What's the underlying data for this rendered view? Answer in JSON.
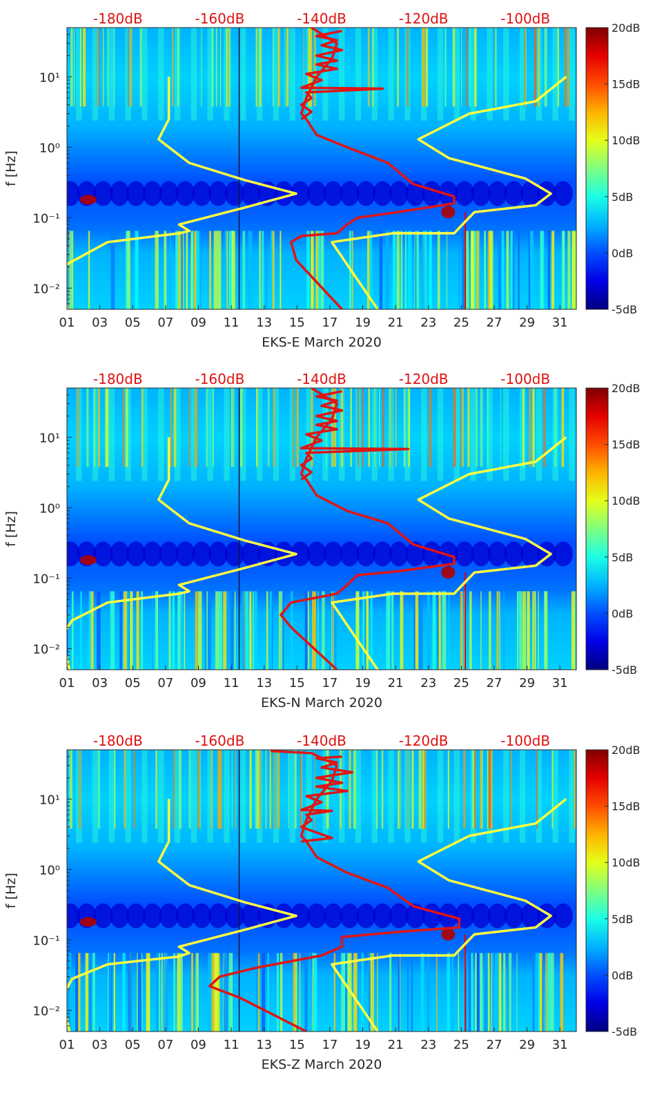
{
  "chart_data": [
    {
      "type": "heatmap",
      "station": "EKS-E",
      "xlabel": "EKS-E March 2020",
      "ylabel": "f [Hz]",
      "x_ticks": [
        "01",
        "03",
        "05",
        "07",
        "09",
        "11",
        "13",
        "15",
        "17",
        "19",
        "21",
        "23",
        "25",
        "27",
        "29",
        "31"
      ],
      "y_ticks": [
        "10⁻²",
        "10⁻¹",
        "10⁰",
        "10¹"
      ],
      "top_ticks": [
        "-180dB",
        "-160dB",
        "-140dB",
        "-120dB",
        "-100dB"
      ],
      "colorbar": {
        "ticks": [
          "20dB",
          "15dB",
          "10dB",
          "5dB",
          "0dB",
          "-5dB"
        ],
        "range_db": [
          -5,
          20
        ]
      },
      "xlim_day": [
        1,
        32
      ],
      "ylim_hz": [
        0.005,
        50
      ],
      "yscale": "log",
      "top_axis_db": [
        -190,
        -90
      ],
      "series": [
        {
          "color": "#ffff40",
          "points": [
            [
              -190,
              0.005
            ],
            [
              -191,
              0.02
            ],
            [
              -188.5,
              0.025
            ],
            [
              -182,
              0.045
            ],
            [
              -168,
              0.06
            ],
            [
              -166,
              0.065
            ],
            [
              -168,
              0.08
            ],
            [
              -155,
              0.14
            ],
            [
              -145,
              0.22
            ],
            [
              -155,
              0.34
            ],
            [
              -166,
              0.6
            ],
            [
              -172,
              1.3
            ],
            [
              -170,
              2.5
            ],
            [
              -170,
              10
            ]
          ]
        },
        {
          "color": "#ffff40",
          "points": [
            [
              -129,
              0.005
            ],
            [
              -138,
              0.045
            ],
            [
              -126,
              0.06
            ],
            [
              -114,
              0.06
            ],
            [
              -112,
              0.085
            ],
            [
              -110,
              0.12
            ],
            [
              -98,
              0.15
            ],
            [
              -95,
              0.22
            ],
            [
              -100,
              0.36
            ],
            [
              -115,
              0.7
            ],
            [
              -121,
              1.3
            ],
            [
              -111,
              3.0
            ],
            [
              -98,
              4.5
            ],
            [
              -92,
              10
            ]
          ]
        },
        {
          "color": "#e01515",
          "points": [
            [
              -136,
              0.005
            ],
            [
              -145,
              0.025
            ],
            [
              -146,
              0.045
            ],
            [
              -144,
              0.055
            ],
            [
              -137,
              0.06
            ],
            [
              -135,
              0.08
            ],
            [
              -133,
              0.1
            ],
            [
              -125,
              0.12
            ],
            [
              -114,
              0.16
            ],
            [
              -114,
              0.2
            ],
            [
              -122,
              0.3
            ],
            [
              -127,
              0.6
            ],
            [
              -135,
              1.0
            ],
            [
              -141,
              1.5
            ],
            [
              -143,
              2.5
            ],
            [
              -144,
              3.0
            ],
            [
              -143,
              5.0
            ],
            [
              -141,
              10
            ],
            [
              -138,
              18
            ],
            [
              -137,
              30
            ],
            [
              -142,
              50
            ]
          ]
        },
        {
          "color": "#e01515",
          "points": [
            [
              -144,
              2.5
            ],
            [
              -142,
              3.2
            ],
            [
              -144,
              4.0
            ],
            [
              -142,
              5.0
            ],
            [
              -143,
              6.0
            ],
            [
              -128,
              6.8
            ],
            [
              -144,
              7.0
            ],
            [
              -140,
              9.0
            ],
            [
              -143,
              11
            ],
            [
              -137,
              13
            ],
            [
              -141,
              15
            ],
            [
              -137,
              17
            ],
            [
              -141,
              20
            ],
            [
              -136,
              24
            ],
            [
              -140,
              28
            ],
            [
              -137,
              33
            ],
            [
              -141,
              38
            ],
            [
              -136,
              45
            ]
          ]
        }
      ]
    },
    {
      "type": "heatmap",
      "station": "EKS-N",
      "xlabel": "EKS-N March 2020",
      "ylabel": "f [Hz]",
      "x_ticks": [
        "01",
        "03",
        "05",
        "07",
        "09",
        "11",
        "13",
        "15",
        "17",
        "19",
        "21",
        "23",
        "25",
        "27",
        "29",
        "31"
      ],
      "y_ticks": [
        "10⁻²",
        "10⁻¹",
        "10⁰",
        "10¹"
      ],
      "top_ticks": [
        "-180dB",
        "-160dB",
        "-140dB",
        "-120dB",
        "-100dB"
      ],
      "colorbar": {
        "ticks": [
          "20dB",
          "15dB",
          "10dB",
          "5dB",
          "0dB",
          "-5dB"
        ],
        "range_db": [
          -5,
          20
        ]
      },
      "xlim_day": [
        1,
        32
      ],
      "ylim_hz": [
        0.005,
        50
      ],
      "yscale": "log",
      "top_axis_db": [
        -190,
        -90
      ],
      "series": [
        {
          "color": "#ffff40",
          "points": [
            [
              -189.5,
              0.005
            ],
            [
              -191,
              0.015
            ],
            [
              -189,
              0.025
            ],
            [
              -182,
              0.045
            ],
            [
              -168,
              0.06
            ],
            [
              -166,
              0.065
            ],
            [
              -168,
              0.08
            ],
            [
              -155,
              0.14
            ],
            [
              -145,
              0.22
            ],
            [
              -155,
              0.34
            ],
            [
              -166,
              0.6
            ],
            [
              -172,
              1.3
            ],
            [
              -170,
              2.5
            ],
            [
              -170,
              10
            ]
          ]
        },
        {
          "color": "#ffff40",
          "points": [
            [
              -129,
              0.005
            ],
            [
              -138,
              0.045
            ],
            [
              -126,
              0.06
            ],
            [
              -114,
              0.06
            ],
            [
              -112,
              0.085
            ],
            [
              -110,
              0.12
            ],
            [
              -98,
              0.15
            ],
            [
              -95,
              0.22
            ],
            [
              -100,
              0.36
            ],
            [
              -115,
              0.7
            ],
            [
              -121,
              1.3
            ],
            [
              -111,
              3.0
            ],
            [
              -98,
              4.5
            ],
            [
              -92,
              10
            ]
          ]
        },
        {
          "color": "#e01515",
          "points": [
            [
              -137,
              0.005
            ],
            [
              -146,
              0.02
            ],
            [
              -148,
              0.03
            ],
            [
              -146,
              0.045
            ],
            [
              -137,
              0.06
            ],
            [
              -135,
              0.08
            ],
            [
              -133,
              0.11
            ],
            [
              -125,
              0.125
            ],
            [
              -114,
              0.16
            ],
            [
              -114,
              0.2
            ],
            [
              -122,
              0.3
            ],
            [
              -127,
              0.6
            ],
            [
              -135,
              0.9
            ],
            [
              -141,
              1.5
            ],
            [
              -143,
              2.5
            ],
            [
              -144,
              3.0
            ],
            [
              -143,
              5.0
            ],
            [
              -141,
              10
            ],
            [
              -138,
              18
            ],
            [
              -137,
              30
            ],
            [
              -142,
              50
            ]
          ]
        },
        {
          "color": "#e01515",
          "points": [
            [
              -144,
              2.5
            ],
            [
              -142,
              3.2
            ],
            [
              -144,
              4.0
            ],
            [
              -142,
              5.0
            ],
            [
              -143,
              6.0
            ],
            [
              -123,
              6.8
            ],
            [
              -144,
              7.0
            ],
            [
              -140,
              9.0
            ],
            [
              -143,
              11
            ],
            [
              -137,
              13
            ],
            [
              -141,
              15
            ],
            [
              -137,
              17
            ],
            [
              -141,
              20
            ],
            [
              -136,
              24
            ],
            [
              -140,
              28
            ],
            [
              -137,
              33
            ],
            [
              -141,
              38
            ],
            [
              -136,
              45
            ]
          ]
        }
      ]
    },
    {
      "type": "heatmap",
      "station": "EKS-Z",
      "xlabel": "EKS-Z March 2020",
      "ylabel": "f [Hz]",
      "x_ticks": [
        "01",
        "03",
        "05",
        "07",
        "09",
        "11",
        "13",
        "15",
        "17",
        "19",
        "21",
        "23",
        "25",
        "27",
        "29",
        "31"
      ],
      "y_ticks": [
        "10⁻²",
        "10⁻¹",
        "10⁰",
        "10¹"
      ],
      "top_ticks": [
        "-180dB",
        "-160dB",
        "-140dB",
        "-120dB",
        "-100dB"
      ],
      "colorbar": {
        "ticks": [
          "20dB",
          "15dB",
          "10dB",
          "5dB",
          "0dB",
          "-5dB"
        ],
        "range_db": [
          -5,
          20
        ]
      },
      "xlim_day": [
        1,
        32
      ],
      "ylim_hz": [
        0.005,
        50
      ],
      "yscale": "log",
      "top_axis_db": [
        -190,
        -90
      ],
      "series": [
        {
          "color": "#ffff40",
          "points": [
            [
              -189.5,
              0.005
            ],
            [
              -191,
              0.015
            ],
            [
              -189,
              0.028
            ],
            [
              -182,
              0.045
            ],
            [
              -168,
              0.058
            ],
            [
              -166,
              0.065
            ],
            [
              -168,
              0.08
            ],
            [
              -155,
              0.14
            ],
            [
              -145,
              0.22
            ],
            [
              -155,
              0.34
            ],
            [
              -166,
              0.6
            ],
            [
              -172,
              1.3
            ],
            [
              -170,
              2.5
            ],
            [
              -170,
              10
            ]
          ]
        },
        {
          "color": "#ffff40",
          "points": [
            [
              -129,
              0.005
            ],
            [
              -138,
              0.045
            ],
            [
              -126,
              0.06
            ],
            [
              -114,
              0.06
            ],
            [
              -112,
              0.085
            ],
            [
              -110,
              0.12
            ],
            [
              -98,
              0.15
            ],
            [
              -95,
              0.22
            ],
            [
              -100,
              0.36
            ],
            [
              -115,
              0.7
            ],
            [
              -121,
              1.3
            ],
            [
              -111,
              3.0
            ],
            [
              -98,
              4.5
            ],
            [
              -92,
              10
            ]
          ]
        },
        {
          "color": "#e01515",
          "points": [
            [
              -143,
              0.005
            ],
            [
              -156,
              0.015
            ],
            [
              -162,
              0.022
            ],
            [
              -160,
              0.03
            ],
            [
              -153,
              0.04
            ],
            [
              -140,
              0.06
            ],
            [
              -136,
              0.08
            ],
            [
              -136,
              0.11
            ],
            [
              -125,
              0.13
            ],
            [
              -113,
              0.15
            ],
            [
              -113,
              0.2
            ],
            [
              -122,
              0.3
            ],
            [
              -127,
              0.55
            ],
            [
              -135,
              0.9
            ],
            [
              -141,
              1.5
            ],
            [
              -143,
              2.5
            ],
            [
              -144,
              3.0
            ],
            [
              -143,
              5.0
            ],
            [
              -141,
              10
            ],
            [
              -138,
              18
            ],
            [
              -137,
              30
            ],
            [
              -142,
              45
            ],
            [
              -150,
              48
            ]
          ]
        },
        {
          "color": "#e01515",
          "points": [
            [
              -144,
              2.5
            ],
            [
              -138,
              2.8
            ],
            [
              -144,
              4.0
            ],
            [
              -142,
              5.0
            ],
            [
              -143,
              6.0
            ],
            [
              -138,
              6.8
            ],
            [
              -144,
              7.0
            ],
            [
              -140,
              9.0
            ],
            [
              -143,
              11
            ],
            [
              -135,
              13
            ],
            [
              -141,
              15
            ],
            [
              -136,
              17
            ],
            [
              -141,
              20
            ],
            [
              -134,
              24
            ],
            [
              -140,
              28
            ],
            [
              -137,
              33
            ],
            [
              -141,
              38
            ],
            [
              -136,
              40
            ]
          ]
        }
      ]
    }
  ]
}
